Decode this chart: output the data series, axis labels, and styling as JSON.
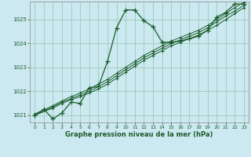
{
  "title": "Graphe pression niveau de la mer (hPa)",
  "bg_color": "#cce8f0",
  "grid_color": "#99ccbb",
  "line_color": "#1a5c2a",
  "xlim": [
    -0.5,
    23.5
  ],
  "ylim": [
    1020.7,
    1025.75
  ],
  "yticks": [
    1021,
    1022,
    1023,
    1024,
    1025
  ],
  "xticks": [
    0,
    1,
    2,
    3,
    4,
    5,
    6,
    7,
    8,
    9,
    10,
    11,
    12,
    13,
    14,
    15,
    16,
    17,
    18,
    19,
    20,
    21,
    22,
    23
  ],
  "series1_x": [
    0,
    1,
    2,
    3,
    4,
    5,
    6,
    7,
    8,
    9,
    10,
    11,
    12,
    13,
    14,
    15,
    16,
    17,
    18,
    19,
    20,
    21,
    22,
    23
  ],
  "series1_y": [
    1021.0,
    1021.25,
    1020.85,
    1021.1,
    1021.55,
    1021.5,
    1022.15,
    1022.2,
    1023.25,
    1024.65,
    1025.4,
    1025.4,
    1024.95,
    1024.7,
    1024.05,
    1024.05,
    1024.1,
    1024.2,
    1024.3,
    1024.55,
    1025.1,
    1025.3,
    1025.65,
    1025.65
  ],
  "series2_x": [
    0,
    2,
    3,
    4,
    5,
    6,
    7,
    8,
    9,
    10,
    11,
    12,
    13,
    14,
    15,
    16,
    17,
    18,
    19,
    20,
    21,
    22,
    23
  ],
  "series2_y": [
    1021.0,
    1021.3,
    1021.5,
    1021.65,
    1021.78,
    1021.93,
    1022.1,
    1022.3,
    1022.55,
    1022.8,
    1023.05,
    1023.3,
    1023.5,
    1023.7,
    1023.9,
    1024.05,
    1024.2,
    1024.35,
    1024.55,
    1024.75,
    1025.0,
    1025.25,
    1025.5
  ],
  "series3_x": [
    0,
    2,
    3,
    4,
    5,
    6,
    7,
    8,
    9,
    10,
    11,
    12,
    13,
    14,
    15,
    16,
    17,
    18,
    19,
    20,
    21,
    22,
    23
  ],
  "series3_y": [
    1021.0,
    1021.35,
    1021.55,
    1021.7,
    1021.85,
    1022.0,
    1022.2,
    1022.4,
    1022.65,
    1022.9,
    1023.15,
    1023.4,
    1023.6,
    1023.8,
    1024.0,
    1024.15,
    1024.3,
    1024.45,
    1024.65,
    1024.9,
    1025.15,
    1025.35,
    1025.6
  ],
  "series4_x": [
    0,
    2,
    3,
    4,
    5,
    6,
    7,
    8,
    9,
    10,
    11,
    12,
    13,
    14,
    15,
    16,
    17,
    18,
    19,
    20,
    21,
    22,
    23
  ],
  "series4_y": [
    1021.05,
    1021.4,
    1021.6,
    1021.78,
    1021.93,
    1022.1,
    1022.3,
    1022.5,
    1022.75,
    1023.0,
    1023.25,
    1023.5,
    1023.7,
    1023.9,
    1024.1,
    1024.25,
    1024.4,
    1024.55,
    1024.75,
    1025.0,
    1025.25,
    1025.5,
    1025.72
  ]
}
